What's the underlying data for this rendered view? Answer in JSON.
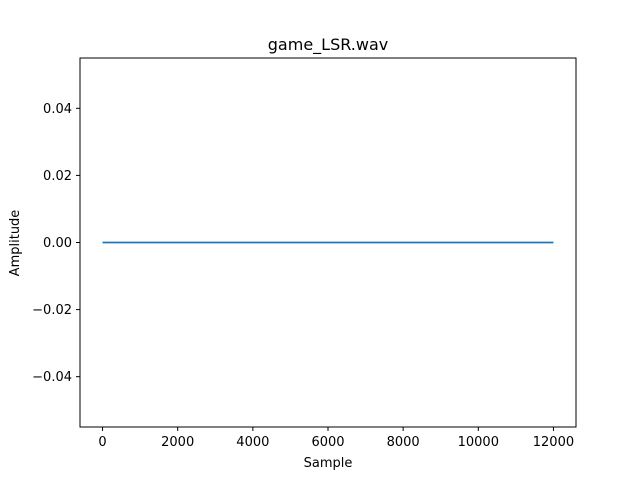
{
  "chart_data": {
    "type": "line",
    "title": "game_LSR.wav",
    "xlabel": "Sample",
    "ylabel": "Amplitude",
    "xlim": [
      -600,
      12600
    ],
    "ylim": [
      -0.055,
      0.055
    ],
    "xticks": [
      0,
      2000,
      4000,
      6000,
      8000,
      10000,
      12000
    ],
    "xtick_labels": [
      "0",
      "2000",
      "4000",
      "6000",
      "8000",
      "10000",
      "12000"
    ],
    "yticks": [
      0.04,
      0.02,
      0.0,
      -0.02,
      -0.04
    ],
    "ytick_labels": [
      "0.04",
      "0.02",
      "0.00",
      "−0.02",
      "−0.04"
    ],
    "grid": false,
    "series": [
      {
        "color": "#1f77b4",
        "x": [
          0,
          12000
        ],
        "y": [
          0.0,
          0.0
        ]
      }
    ]
  }
}
